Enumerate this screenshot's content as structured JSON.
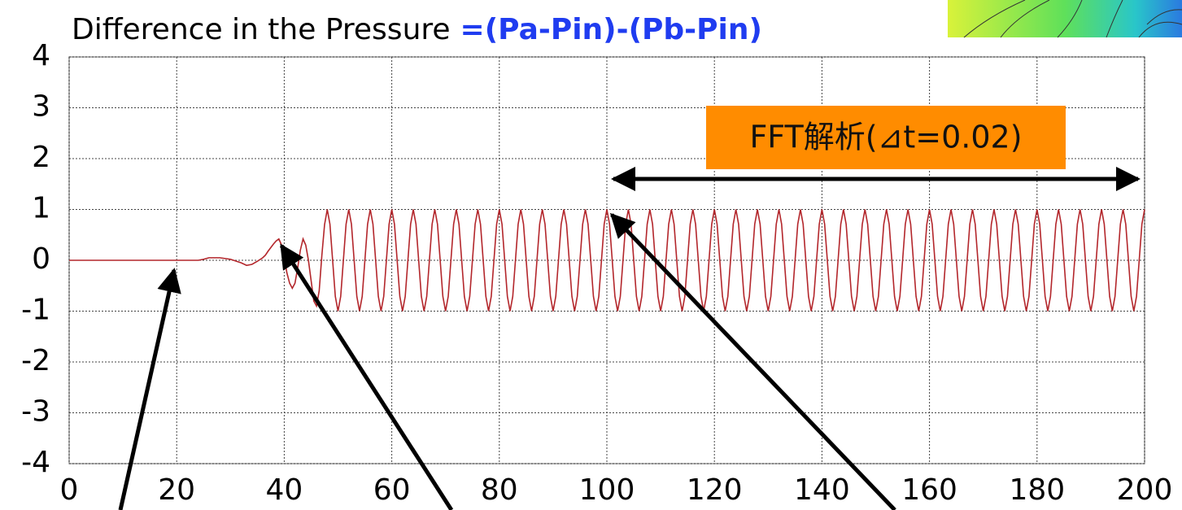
{
  "chart_data": {
    "type": "line",
    "title": "Difference in the Pressure",
    "formula": "=(Pa-Pin)-(Pb-Pin)",
    "annotation": "FFT解析(⊿t=0.02)",
    "fft_range": [
      100,
      200
    ],
    "color": "#b3262b",
    "grid": true,
    "xlim": [
      0,
      200
    ],
    "xticks": [
      0,
      20,
      40,
      60,
      80,
      100,
      120,
      140,
      160,
      180,
      200
    ],
    "ylim": [
      -4,
      4
    ],
    "yticks": [
      -4,
      -3,
      -2,
      -1,
      0,
      1,
      2,
      3,
      4
    ],
    "x": [
      0,
      24,
      25,
      26,
      28,
      30,
      32,
      33,
      34,
      35,
      36,
      36.5,
      37,
      37.5,
      38,
      38.5,
      39,
      39.5,
      40,
      40.5,
      41,
      41.5,
      42,
      42.5,
      43,
      43.5,
      44,
      44.5,
      45,
      45.5,
      46,
      46.5,
      47,
      47.5,
      48,
      48.5,
      49,
      49.5,
      50,
      50.5,
      51,
      51.5,
      52,
      52.5,
      53,
      53.5,
      54,
      54.5,
      55,
      55.5,
      56,
      56.5,
      57,
      57.5,
      58,
      58.5,
      59,
      59.5,
      60,
      60.5,
      61,
      61.5,
      62,
      62.5,
      63,
      63.5,
      64,
      64.5,
      65,
      65.5,
      66,
      66.5,
      67,
      67.5,
      68,
      68.5,
      69,
      69.5,
      70,
      70.5,
      71,
      71.5,
      72,
      72.5,
      73,
      73.5,
      74,
      74.5,
      75,
      75.5,
      76,
      76.5,
      77,
      77.5,
      78,
      78.5,
      79,
      79.5,
      80,
      80.5,
      81,
      81.5,
      82,
      82.5,
      83,
      83.5,
      84,
      84.5,
      85,
      85.5,
      86,
      86.5,
      87,
      87.5,
      88,
      88.5,
      89,
      89.5,
      90,
      90.5,
      91,
      91.5,
      92,
      92.5,
      93,
      93.5,
      94,
      94.5,
      95,
      95.5,
      96,
      96.5,
      97,
      97.5,
      98,
      98.5,
      99,
      99.5,
      100,
      100.5,
      101,
      101.5,
      102,
      102.5,
      103,
      103.5,
      104,
      104.5,
      105,
      105.5,
      106,
      106.5,
      107,
      107.5,
      108,
      108.5,
      109,
      109.5,
      110,
      110.5,
      111,
      111.5,
      112,
      112.5,
      113,
      113.5,
      114,
      114.5,
      115,
      115.5,
      116,
      116.5,
      117,
      117.5,
      118,
      118.5,
      119,
      119.5,
      120,
      120.5,
      121,
      121.5,
      122,
      122.5,
      123,
      123.5,
      124,
      124.5,
      125,
      125.5,
      126,
      126.5,
      127,
      127.5,
      128,
      128.5,
      129,
      129.5,
      130,
      130.5,
      131,
      131.5,
      132,
      132.5,
      133,
      133.5,
      134,
      134.5,
      135,
      135.5,
      136,
      136.5,
      137,
      137.5,
      138,
      138.5,
      139,
      139.5,
      140,
      140.5,
      141,
      141.5,
      142,
      142.5,
      143,
      143.5,
      144,
      144.5,
      145,
      145.5,
      146,
      146.5,
      147,
      147.5,
      148,
      148.5,
      149,
      149.5,
      150,
      150.5,
      151,
      151.5,
      152,
      152.5,
      153,
      153.5,
      154,
      154.5,
      155,
      155.5,
      156,
      156.5,
      157,
      157.5,
      158,
      158.5,
      159,
      159.5,
      160,
      160.5,
      161,
      161.5,
      162,
      162.5,
      163,
      163.5,
      164,
      164.5,
      165,
      165.5,
      166,
      166.5,
      167,
      167.5,
      168,
      168.5,
      169,
      169.5,
      170,
      170.5,
      171,
      171.5,
      172,
      172.5,
      173,
      173.5,
      174,
      174.5,
      175,
      175.5,
      176,
      176.5,
      177,
      177.5,
      178,
      178.5,
      179,
      179.5,
      180,
      180.5,
      181,
      181.5,
      182,
      182.5,
      183,
      183.5,
      184,
      184.5,
      185,
      185.5,
      186,
      186.5,
      187,
      187.5,
      188,
      188.5,
      189,
      189.5,
      190,
      190.5,
      191,
      191.5,
      192,
      192.5,
      193,
      193.5,
      194,
      194.5,
      195,
      195.5,
      196,
      196.5,
      197,
      197.5,
      198,
      198.5,
      199,
      199.5,
      200
    ],
    "values": [
      0,
      0,
      0.02,
      0.05,
      0.05,
      0.02,
      -0.05,
      -0.1,
      -0.08,
      -0.02,
      0.05,
      0.1,
      0.18,
      0.25,
      0.32,
      0.38,
      0.42,
      0.3,
      0.05,
      -0.25,
      -0.45,
      -0.55,
      -0.45,
      -0.15,
      0.2,
      0.42,
      0.3,
      0,
      -0.4,
      -0.8,
      -0.9,
      -0.6,
      0.1,
      0.7,
      1,
      0.71,
      0,
      -0.71,
      -1,
      -0.71,
      0,
      0.71,
      1,
      0.71,
      0,
      -0.71,
      -1,
      -0.71,
      0,
      0.71,
      1,
      0.71,
      0,
      -0.71,
      -1,
      -0.71,
      0,
      0.71,
      1,
      0.71,
      0,
      -0.71,
      -1,
      -0.71,
      0,
      0.71,
      1,
      0.71,
      0,
      -0.71,
      -1,
      -0.71,
      0,
      0.71,
      1,
      0.71,
      0,
      -0.71,
      -1,
      -0.71,
      0,
      0.71,
      1,
      0.71,
      0,
      -0.71,
      -1,
      -0.71,
      0,
      0.71,
      1,
      0.71,
      0,
      -0.71,
      -1,
      -0.71,
      0,
      0.71,
      1,
      0.71,
      0,
      -0.71,
      -1,
      -0.71,
      0,
      0.71,
      1,
      0.71,
      0,
      -0.71,
      -1,
      -0.71,
      0,
      0.71,
      1,
      0.71,
      0,
      -0.71,
      -1,
      -0.71,
      0,
      0.71,
      1,
      0.71,
      0,
      -0.71,
      -1,
      -0.71,
      0,
      0.71,
      1,
      0.71,
      0,
      -0.71,
      -1,
      -0.71,
      0,
      0.71,
      1,
      0.71,
      0,
      -0.71,
      -1,
      -0.71,
      0,
      0.71,
      1,
      0.71,
      0,
      -0.71,
      -1,
      -0.71,
      0,
      0.71,
      1,
      0.71,
      0,
      -0.71,
      -1,
      -0.71,
      0,
      0.71,
      1,
      0.71,
      0,
      -0.71,
      -1,
      -0.71,
      0,
      0.71,
      1,
      0.71,
      0,
      -0.71,
      -1,
      -0.71,
      0,
      0.71,
      1,
      0.71,
      0,
      -0.71,
      -1,
      -0.71,
      0,
      0.71,
      1,
      0.71,
      0,
      -0.71,
      -1,
      -0.71,
      0,
      0.71,
      1,
      0.71,
      0,
      -0.71,
      -1,
      -0.71,
      0,
      0.71,
      1,
      0.71,
      0,
      -0.71,
      -1,
      -0.71,
      0,
      0.71,
      1,
      0.71,
      0,
      -0.71,
      -1,
      -0.71,
      0,
      0.71,
      1,
      0.71,
      0,
      -0.71,
      -1,
      -0.71,
      0,
      0.71,
      1,
      0.71,
      0,
      -0.71,
      -1,
      -0.71,
      0,
      0.71,
      1,
      0.71,
      0,
      -0.71,
      -1,
      -0.71,
      0,
      0.71,
      1,
      0.71,
      0,
      -0.71,
      -1,
      -0.71,
      0,
      0.71,
      1,
      0.71,
      0,
      -0.71,
      -1,
      -0.71,
      0,
      0.71,
      1,
      0.71,
      0,
      -0.71,
      -1,
      -0.71,
      0,
      0.71,
      1,
      0.71,
      0,
      -0.71,
      -1,
      -0.71,
      0,
      0.71,
      1,
      0.71,
      0,
      -0.71,
      -1,
      -0.71,
      0,
      0.71,
      1,
      0.71,
      0,
      -0.71,
      -1,
      -0.71,
      0,
      0.71,
      1,
      0.71,
      0,
      -0.71,
      -1,
      -0.71,
      0,
      0.71,
      1,
      0.71,
      0,
      -0.71,
      -1,
      -0.71,
      0,
      0.71,
      1,
      0.71,
      0,
      -0.71,
      -1,
      -0.71,
      0,
      0.71,
      1,
      0.71,
      0,
      -0.71,
      -1,
      -0.71,
      0,
      0.71,
      1,
      0.71,
      0,
      -0.71,
      -1,
      -0.71,
      0,
      0.71,
      1,
      0.71,
      0,
      -0.71,
      -1,
      -0.71,
      0,
      0.71,
      1
    ]
  }
}
